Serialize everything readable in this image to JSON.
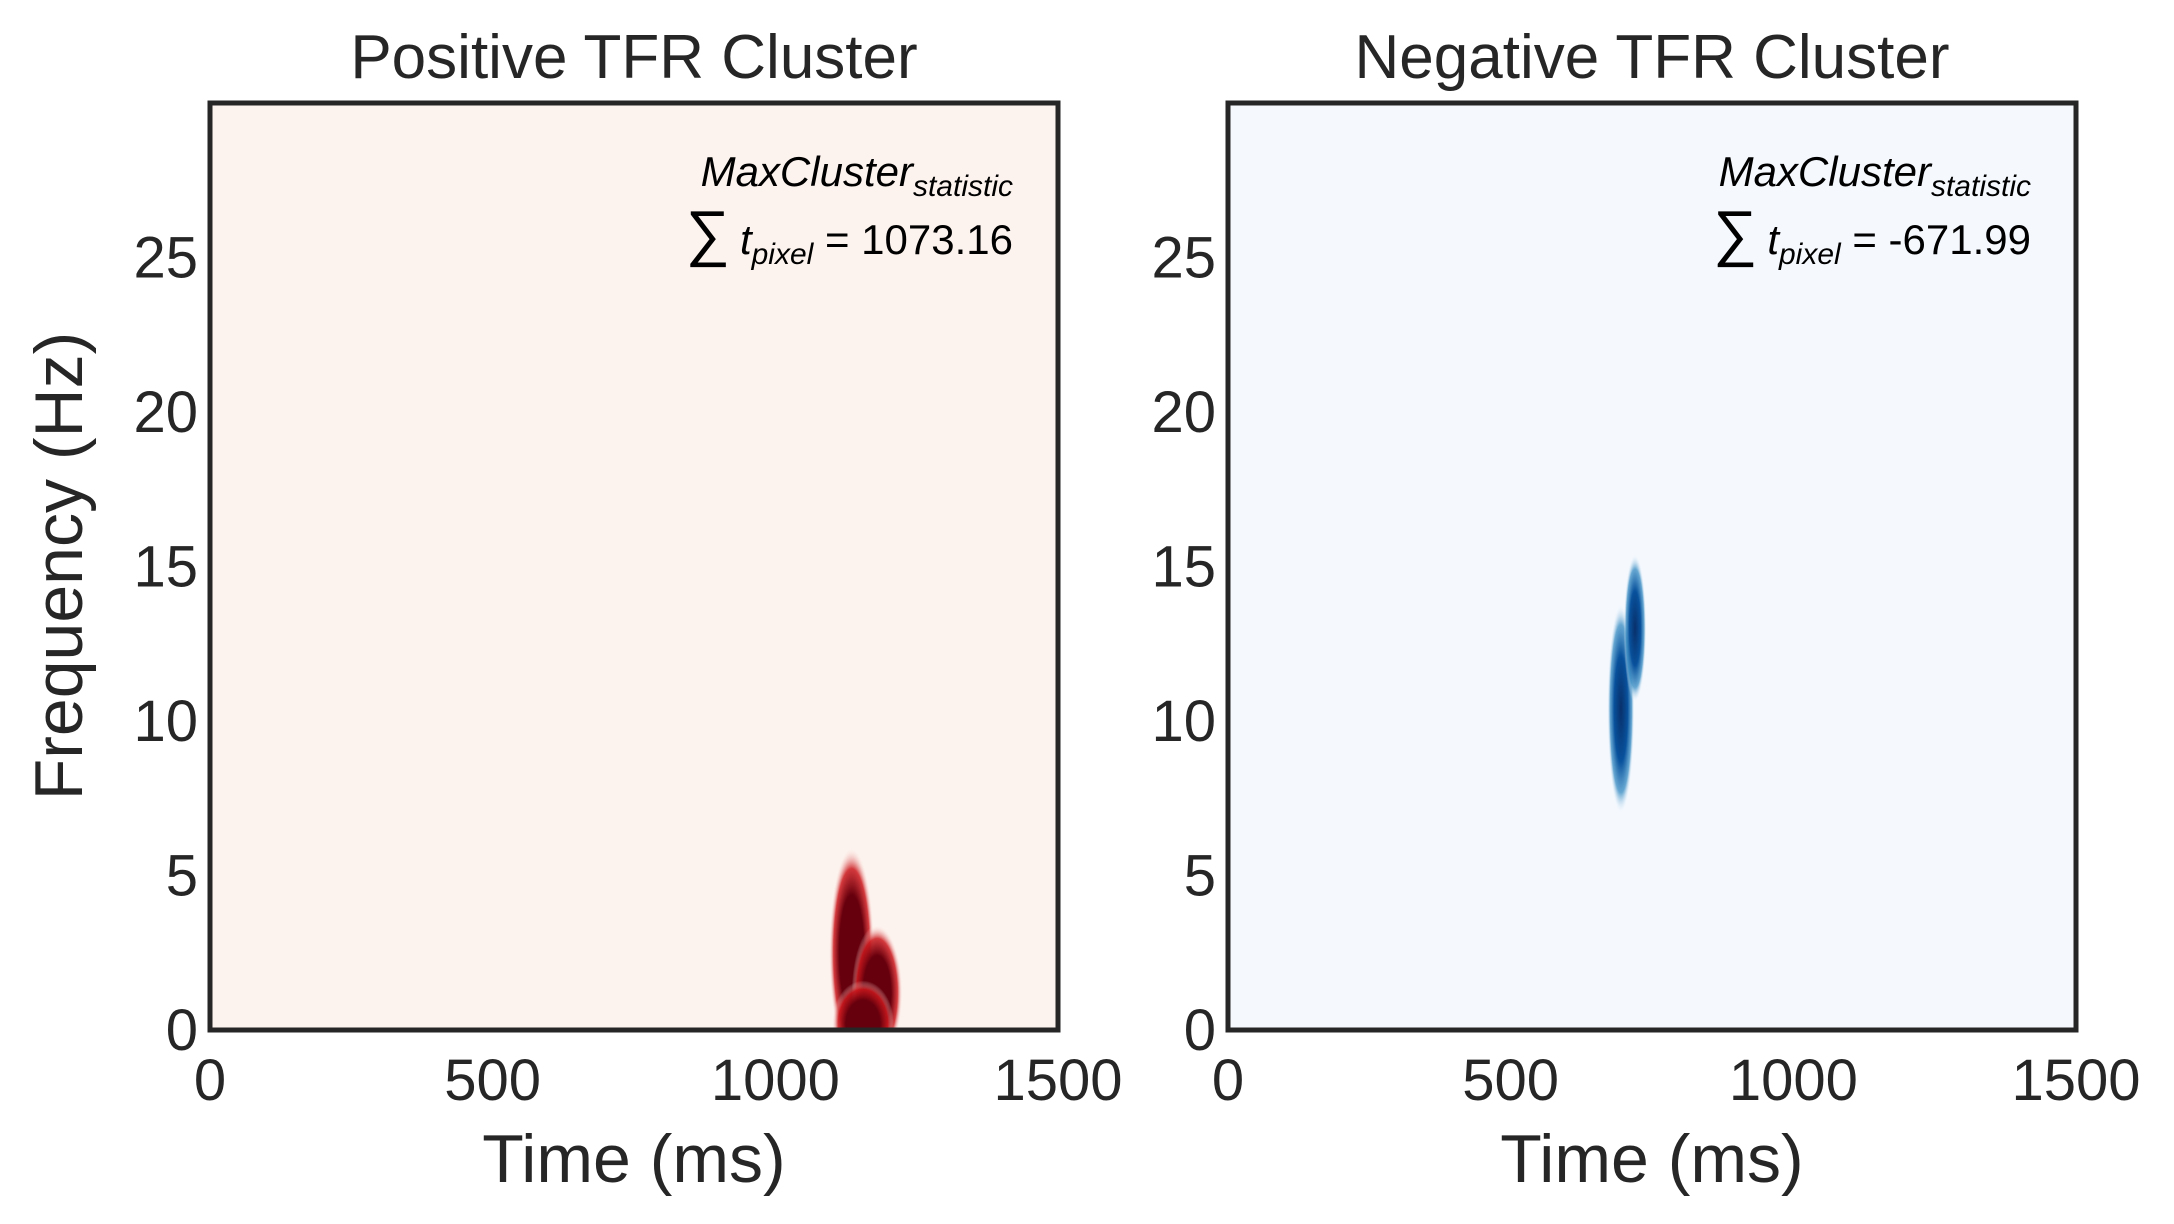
{
  "chart_data": [
    {
      "type": "heatmap",
      "title": "Positive TFR Cluster",
      "xlabel": "Time (ms)",
      "ylabel": "Frequency (Hz)",
      "xlim": [
        0,
        1500
      ],
      "ylim": [
        0,
        30
      ],
      "xticks": [
        "0",
        "500",
        "1000",
        "1500"
      ],
      "yticks": [
        "0",
        "5",
        "10",
        "15",
        "20",
        "25"
      ],
      "colormap": "Reds",
      "background_color": "#fdf3ee",
      "cluster_color": "#67000d",
      "annotation": {
        "line1": "MaxCluster",
        "line1_sub": "statistic",
        "line2_sum": "∑",
        "line2_t": "t",
        "line2_sub": "pixel",
        "line2_rest": " = 1073.16"
      },
      "cluster": {
        "time_range_ms": [
          1100,
          1230
        ],
        "freq_range_hz": [
          0,
          5.6
        ],
        "peak_time_ms": 1135,
        "peak_freq_hz": 2.5
      }
    },
    {
      "type": "heatmap",
      "title": "Negative TFR Cluster",
      "xlabel": "Time (ms)",
      "ylabel": "",
      "xlim": [
        0,
        1500
      ],
      "ylim": [
        0,
        30
      ],
      "xticks": [
        "0",
        "500",
        "1000",
        "1500"
      ],
      "yticks": [
        "0",
        "5",
        "10",
        "15",
        "20",
        "25"
      ],
      "colormap": "Blues",
      "background_color": "#f5f9fe",
      "cluster_color": "#08306b",
      "annotation": {
        "line1": "MaxCluster",
        "line1_sub": "statistic",
        "line2_sum": "∑",
        "line2_t": "t",
        "line2_sub": "pixel",
        "line2_rest": " = -671.99"
      },
      "cluster": {
        "time_range_ms": [
          660,
          740
        ],
        "freq_range_hz": [
          8,
          14.6
        ],
        "peak_time_ms": 700,
        "peak_freq_hz": 11
      }
    }
  ]
}
